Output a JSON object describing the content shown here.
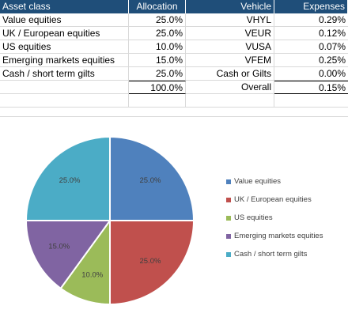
{
  "table": {
    "headers": [
      "Asset class",
      "Allocation",
      "Vehicle",
      "Expenses"
    ],
    "rows": [
      [
        "Value equities",
        "25.0%",
        "VHYL",
        "0.29%"
      ],
      [
        "UK / European equities",
        "25.0%",
        "VEUR",
        "0.12%"
      ],
      [
        "US equities",
        "10.0%",
        "VUSA",
        "0.07%"
      ],
      [
        "Emerging markets equities",
        "15.0%",
        "VFEM",
        "0.25%"
      ],
      [
        "Cash / short term gilts",
        "25.0%",
        "Cash or Gilts",
        "0.00%"
      ]
    ],
    "total_row": [
      "",
      "100.0%",
      "Overall",
      "0.15%"
    ],
    "header_color": "#1f4e79"
  },
  "chart_data": {
    "type": "pie",
    "categories": [
      "Value equities",
      "UK / European equities",
      "US equities",
      "Emerging markets equities",
      "Cash / short term gilts"
    ],
    "values": [
      25.0,
      25.0,
      10.0,
      15.0,
      25.0
    ],
    "data_labels": [
      "25.0%",
      "25.0%",
      "10.0%",
      "15.0%",
      "25.0%"
    ],
    "colors": [
      "#4f81bd",
      "#c0504d",
      "#9bbb59",
      "#8064a2",
      "#4bacc6"
    ],
    "legend_position": "right",
    "start_angle": "12 o'clock",
    "direction": "clockwise"
  }
}
